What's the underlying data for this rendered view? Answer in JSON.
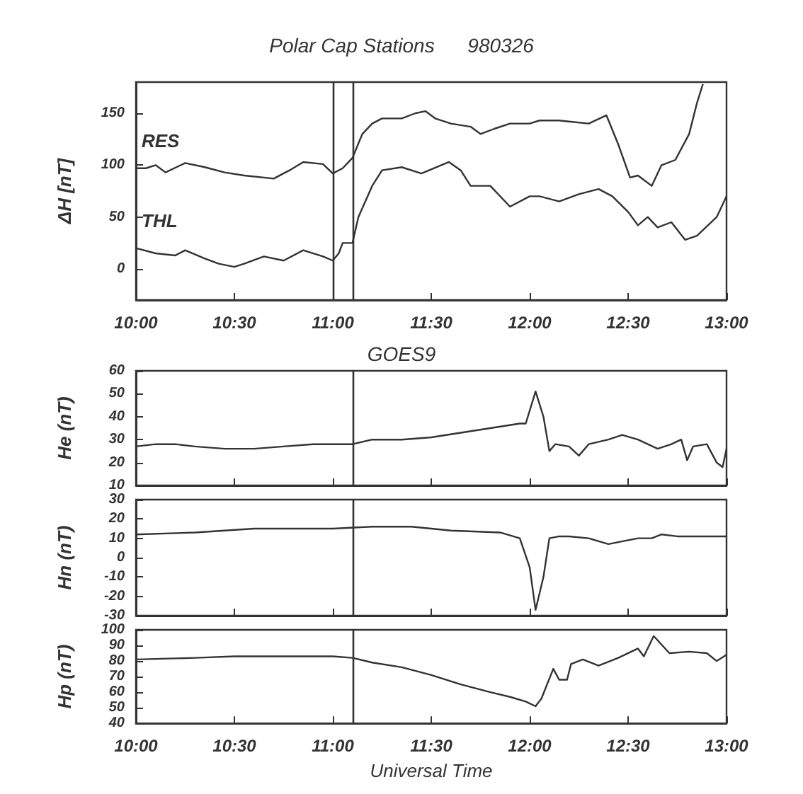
{
  "chart_data": [
    {
      "type": "line",
      "title": "Polar Cap Stations      980326",
      "ylabel": "ΔH [nT]",
      "xlim": [
        10,
        13
      ],
      "xticks": [
        {
          "value": 10,
          "label": "10:00"
        },
        {
          "value": 10.5,
          "label": "10:30"
        },
        {
          "value": 11,
          "label": "11:00"
        },
        {
          "value": 11.5,
          "label": "11:30"
        },
        {
          "value": 12,
          "label": "12:00"
        },
        {
          "value": 12.5,
          "label": "12:30"
        },
        {
          "value": 13,
          "label": "13:00"
        }
      ],
      "ylim": [
        -30,
        180
      ],
      "yticks": [
        0,
        50,
        100,
        150
      ],
      "marker": "none",
      "series": [
        {
          "name": "RES",
          "color": "#333333",
          "x": [
            10.0,
            10.05,
            10.1,
            10.15,
            10.25,
            10.35,
            10.45,
            10.55,
            10.7,
            10.78,
            10.85,
            10.95,
            11.0,
            11.05,
            11.08,
            11.1,
            11.15,
            11.2,
            11.25,
            11.35,
            11.42,
            11.47,
            11.52,
            11.6,
            11.7,
            11.75,
            11.82,
            11.9,
            12.0,
            12.05,
            12.15,
            12.2,
            12.3,
            12.39,
            12.45,
            12.51,
            12.55,
            12.62,
            12.67,
            12.74,
            12.81,
            12.85,
            12.88
          ],
          "values": [
            97,
            97,
            100,
            93,
            102,
            98,
            93,
            90,
            87,
            95,
            103,
            101,
            92,
            97,
            103,
            107,
            130,
            140,
            145,
            145,
            150,
            152,
            145,
            140,
            137,
            130,
            135,
            140,
            140,
            143,
            143,
            142,
            140,
            148,
            120,
            88,
            90,
            80,
            100,
            105,
            130,
            160,
            178
          ]
        },
        {
          "name": "THL",
          "color": "#333333",
          "x": [
            10.0,
            10.1,
            10.2,
            10.25,
            10.35,
            10.42,
            10.5,
            10.55,
            10.65,
            10.75,
            10.85,
            10.95,
            11.0,
            11.03,
            11.05,
            11.1,
            11.13,
            11.2,
            11.25,
            11.35,
            11.45,
            11.59,
            11.65,
            11.7,
            11.8,
            11.9,
            12.0,
            12.05,
            12.15,
            12.25,
            12.35,
            12.42,
            12.5,
            12.55,
            12.6,
            12.65,
            12.72,
            12.79,
            12.85,
            12.95,
            13.0
          ],
          "values": [
            20,
            15,
            13,
            18,
            10,
            5,
            2,
            5,
            12,
            8,
            18,
            12,
            8,
            15,
            25,
            25,
            50,
            80,
            95,
            98,
            92,
            103,
            95,
            80,
            80,
            60,
            70,
            70,
            65,
            72,
            77,
            70,
            55,
            42,
            50,
            40,
            45,
            28,
            32,
            50,
            70
          ]
        }
      ],
      "ref_lines": [
        {
          "axis": "x",
          "value": 11.0,
          "color": "#333333"
        },
        {
          "axis": "x",
          "value": 11.1,
          "color": "#333333"
        }
      ]
    },
    {
      "type": "line",
      "title": "GOES9",
      "ylabel": "He (nT)",
      "xlim": [
        10,
        13
      ],
      "xticks": [
        {
          "value": 10,
          "label": null
        },
        {
          "value": 10.5,
          "label": null
        },
        {
          "value": 11,
          "label": null
        },
        {
          "value": 11.5,
          "label": null
        },
        {
          "value": 12,
          "label": null
        },
        {
          "value": 12.5,
          "label": null
        },
        {
          "value": 13,
          "label": null
        }
      ],
      "ylim": [
        10,
        60
      ],
      "yticks": [
        10,
        20,
        30,
        40,
        50,
        60
      ],
      "tick_labels": "y",
      "marker": "none",
      "series": [
        {
          "color": "#333333",
          "x": [
            10.0,
            10.1,
            10.2,
            10.3,
            10.45,
            10.6,
            10.75,
            10.9,
            11.0,
            11.1,
            11.2,
            11.35,
            11.5,
            11.65,
            11.8,
            11.95,
            11.98,
            12.03,
            12.07,
            12.1,
            12.13,
            12.2,
            12.25,
            12.3,
            12.4,
            12.47,
            12.55,
            12.65,
            12.72,
            12.77,
            12.8,
            12.83,
            12.9,
            12.95,
            12.98,
            13.0
          ],
          "values": [
            27,
            28,
            28,
            27,
            26,
            26,
            27,
            28,
            28,
            28,
            30,
            30,
            31,
            33,
            35,
            37,
            37,
            51,
            40,
            25,
            28,
            27,
            23,
            28,
            30,
            32,
            30,
            26,
            28,
            30,
            21,
            27,
            28,
            20,
            18,
            26
          ]
        }
      ],
      "ref_lines": [
        {
          "axis": "x",
          "value": 11.1,
          "color": "#333333"
        }
      ]
    },
    {
      "type": "line",
      "ylabel": "Hn (nT)",
      "xlim": [
        10,
        13
      ],
      "xticks": [
        {
          "value": 10,
          "label": null
        },
        {
          "value": 10.5,
          "label": null
        },
        {
          "value": 11,
          "label": null
        },
        {
          "value": 11.5,
          "label": null
        },
        {
          "value": 12,
          "label": null
        },
        {
          "value": 12.5,
          "label": null
        },
        {
          "value": 13,
          "label": null
        }
      ],
      "ylim": [
        -30,
        30
      ],
      "yticks": [
        -30,
        -20,
        -10,
        0,
        10,
        20,
        30
      ],
      "tick_labels": "y",
      "marker": "none",
      "series": [
        {
          "color": "#333333",
          "x": [
            10.0,
            10.3,
            10.6,
            11.0,
            11.2,
            11.4,
            11.6,
            11.85,
            11.95,
            12.0,
            12.03,
            12.07,
            12.1,
            12.15,
            12.2,
            12.3,
            12.4,
            12.5,
            12.55,
            12.62,
            12.67,
            12.75,
            12.85,
            13.0
          ],
          "values": [
            12,
            13,
            15,
            15,
            16,
            16,
            14,
            13,
            10,
            -5,
            -27,
            -10,
            10,
            11,
            11,
            10,
            7,
            9,
            10,
            10,
            12,
            11,
            11,
            11
          ]
        }
      ],
      "ref_lines": [
        {
          "axis": "x",
          "value": 11.1,
          "color": "#333333"
        }
      ]
    },
    {
      "type": "line",
      "xlabel": "Universal Time",
      "ylabel": "Hp (nT)",
      "xlim": [
        10,
        13
      ],
      "xticks": [
        {
          "value": 10,
          "label": "10:00"
        },
        {
          "value": 10.5,
          "label": "10:30"
        },
        {
          "value": 11,
          "label": "11:00"
        },
        {
          "value": 11.5,
          "label": "11:30"
        },
        {
          "value": 12,
          "label": "12:00"
        },
        {
          "value": 12.5,
          "label": "12:30"
        },
        {
          "value": 13,
          "label": "13:00"
        }
      ],
      "ylim": [
        40,
        100
      ],
      "yticks": [
        40,
        50,
        60,
        70,
        80,
        90,
        100
      ],
      "marker": "none",
      "series": [
        {
          "color": "#333333",
          "x": [
            10.0,
            10.3,
            10.5,
            10.7,
            11.0,
            11.1,
            11.2,
            11.35,
            11.5,
            11.65,
            11.8,
            11.9,
            11.98,
            12.03,
            12.06,
            12.12,
            12.15,
            12.19,
            12.21,
            12.27,
            12.35,
            12.45,
            12.55,
            12.58,
            12.63,
            12.71,
            12.81,
            12.9,
            12.95,
            13.0
          ],
          "values": [
            81,
            82,
            83,
            83,
            83,
            82,
            79,
            76,
            71,
            65,
            60,
            57,
            54,
            51,
            56,
            75,
            68,
            68,
            78,
            81,
            77,
            82,
            88,
            83,
            96,
            85,
            86,
            85,
            80,
            84
          ]
        }
      ],
      "ref_lines": [
        {
          "axis": "x",
          "value": 11.1,
          "color": "#333333"
        }
      ]
    }
  ]
}
